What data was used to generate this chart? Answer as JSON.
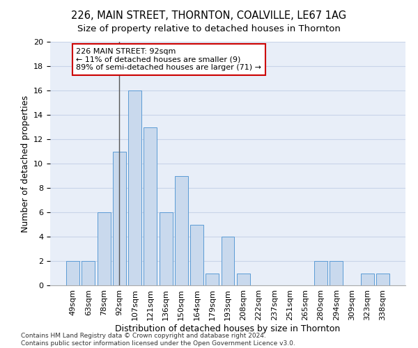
{
  "title1": "226, MAIN STREET, THORNTON, COALVILLE, LE67 1AG",
  "title2": "Size of property relative to detached houses in Thornton",
  "xlabel": "Distribution of detached houses by size in Thornton",
  "ylabel": "Number of detached properties",
  "categories": [
    "49sqm",
    "63sqm",
    "78sqm",
    "92sqm",
    "107sqm",
    "121sqm",
    "136sqm",
    "150sqm",
    "164sqm",
    "179sqm",
    "193sqm",
    "208sqm",
    "222sqm",
    "237sqm",
    "251sqm",
    "265sqm",
    "280sqm",
    "294sqm",
    "309sqm",
    "323sqm",
    "338sqm"
  ],
  "values": [
    2,
    2,
    6,
    11,
    16,
    13,
    6,
    9,
    5,
    1,
    4,
    1,
    0,
    0,
    0,
    0,
    2,
    2,
    0,
    1,
    1
  ],
  "bar_color": "#c9d9ed",
  "bar_edge_color": "#5b9bd5",
  "property_index": 3,
  "annotation_line1": "226 MAIN STREET: 92sqm",
  "annotation_line2": "← 11% of detached houses are smaller (9)",
  "annotation_line3": "89% of semi-detached houses are larger (71) →",
  "annotation_box_color": "#ffffff",
  "annotation_box_edge_color": "#cc0000",
  "marker_line_color": "#555555",
  "ylim": [
    0,
    20
  ],
  "yticks": [
    0,
    2,
    4,
    6,
    8,
    10,
    12,
    14,
    16,
    18,
    20
  ],
  "grid_color": "#c8d4e8",
  "background_color": "#e8eef8",
  "footer_line1": "Contains HM Land Registry data © Crown copyright and database right 2024.",
  "footer_line2": "Contains public sector information licensed under the Open Government Licence v3.0.",
  "title1_fontsize": 10.5,
  "title2_fontsize": 9.5,
  "xlabel_fontsize": 9,
  "ylabel_fontsize": 9,
  "tick_fontsize": 8,
  "annotation_fontsize": 8,
  "footer_fontsize": 6.5
}
